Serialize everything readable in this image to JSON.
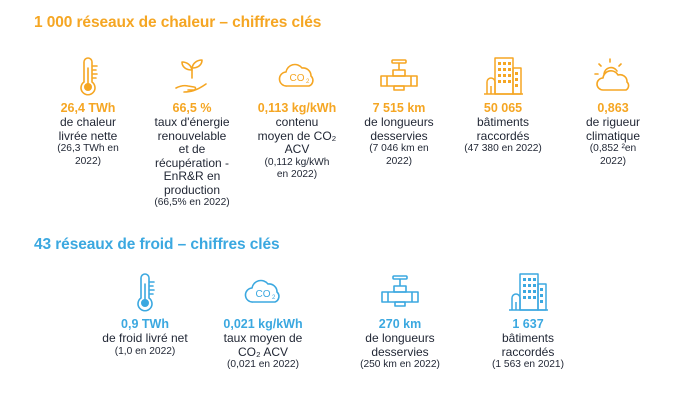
{
  "heat": {
    "title": "1 000 réseaux de chaleur – chiffres clés",
    "accent": "#f5a623",
    "items": [
      {
        "icon": "thermometer-icon",
        "value": "26,4 TWh",
        "desc": [
          "de chaleur",
          "livrée nette"
        ],
        "ref": [
          "(26,3 TWh en",
          "2022)"
        ]
      },
      {
        "icon": "plant-in-hand-icon",
        "value": "66,5 %",
        "desc": [
          "taux d'énergie",
          "renouvelable",
          "et de",
          "récupération -",
          "EnR&R en",
          "production"
        ],
        "ref": [
          "(66,5% en 2022)"
        ]
      },
      {
        "icon": "co2-cloud-icon",
        "value": "0,113 kg/kWh",
        "desc": [
          "contenu",
          "moyen de CO₂",
          "ACV"
        ],
        "ref": [
          "(0,112 kg/kWh",
          "en 2022)"
        ]
      },
      {
        "icon": "pipe-valve-icon",
        "value": "7 515 km",
        "desc": [
          "de longueurs",
          "desservies"
        ],
        "ref": [
          "(7 046 km en",
          "2022)"
        ]
      },
      {
        "icon": "buildings-icon",
        "value": "50 065",
        "desc": [
          "bâtiments",
          "raccordés"
        ],
        "ref": [
          "(47 380 en 2022)"
        ]
      },
      {
        "icon": "sun-cloud-icon",
        "value": "0,863",
        "desc": [
          "de rigueur",
          "climatique"
        ],
        "ref": [
          "(0,852 ²en",
          "2022)"
        ]
      }
    ]
  },
  "cold": {
    "title": "43 réseaux de froid – chiffres clés",
    "accent": "#3ba8e0",
    "items": [
      {
        "icon": "thermometer-icon",
        "value": "0,9 TWh",
        "desc": [
          "de froid livré net"
        ],
        "ref": [
          "(1,0 en 2022)"
        ]
      },
      {
        "icon": "co2-cloud-icon",
        "value": "0,021 kg/kWh",
        "desc": [
          "taux moyen de",
          "CO₂ ACV"
        ],
        "ref": [
          "(0,021 en 2022)"
        ]
      },
      {
        "icon": "pipe-valve-icon",
        "value": "270 km",
        "desc": [
          "de longueurs",
          "desservies"
        ],
        "ref": [
          "(250 km en 2022)"
        ]
      },
      {
        "icon": "buildings-icon",
        "value": "1 637",
        "desc": [
          "bâtiments",
          "raccordés"
        ],
        "ref": [
          "(1 563 en 2021)"
        ]
      }
    ]
  }
}
